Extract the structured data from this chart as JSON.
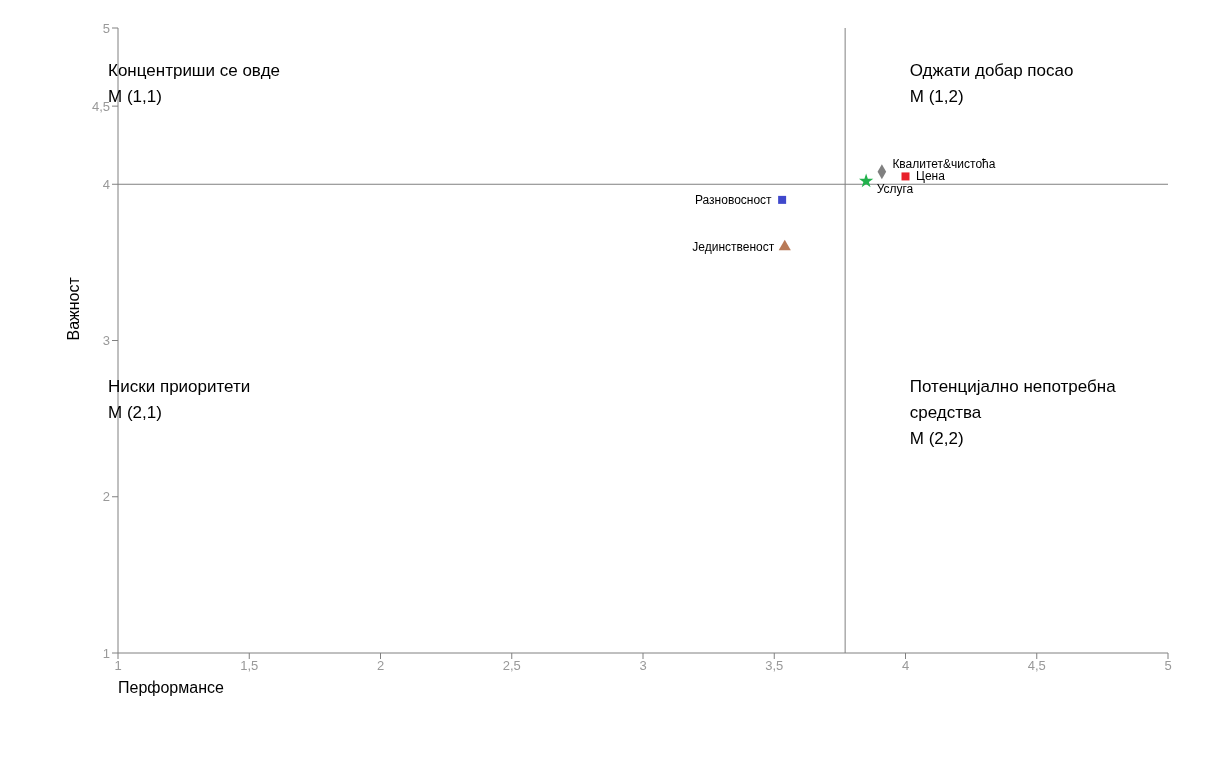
{
  "chart_data": {
    "type": "scatter",
    "xlabel": "Перформансе",
    "ylabel": "Важност",
    "xlim": [
      1,
      5
    ],
    "xticks": [
      1,
      {
        "value": 1.5,
        "label": "1,5"
      },
      2,
      {
        "value": 2.5,
        "label": "2,5"
      },
      3,
      {
        "value": 3.5,
        "label": "3,5"
      },
      4,
      {
        "value": 4.5,
        "label": "4,5"
      },
      5
    ],
    "ylim": [
      1,
      5
    ],
    "yticks": [
      1,
      2,
      3,
      4,
      {
        "value": 4.5,
        "label": "4,5"
      },
      5
    ],
    "grid": false,
    "legend": false,
    "ref_lines": [
      {
        "axis": "y",
        "value": 4,
        "color": "#808080"
      },
      {
        "axis": "x",
        "value": 3.77,
        "color": "#808080"
      }
    ],
    "annotations": [
      "Концентриши се овде\nМ (1,1)",
      "Оджати добар посао\nМ (1,2)",
      "Ниски приоритети\nМ (2,1)",
      "Потенцијално непотребна\nсредства\nМ (2,2)"
    ],
    "series": [
      {
        "name": "Квалитет&чистоћа",
        "color": "#808080",
        "marker": "diamond",
        "x": [
          3.91
        ],
        "values": [
          4.08
        ]
      },
      {
        "name": "Цена",
        "color": "#e8202a",
        "marker": "square",
        "x": [
          4.0
        ],
        "values": [
          4.05
        ]
      },
      {
        "name": "Услуга",
        "color": "#22b14c",
        "marker": "star",
        "x": [
          3.85
        ],
        "values": [
          4.02
        ]
      },
      {
        "name": "Разновосност",
        "color": "#3f48cc",
        "marker": "square",
        "x": [
          3.53
        ],
        "values": [
          3.9
        ]
      },
      {
        "name": "Јединственост",
        "color": "#b97a57",
        "marker": "triangle",
        "x": [
          3.54
        ],
        "values": [
          3.6
        ]
      }
    ]
  }
}
